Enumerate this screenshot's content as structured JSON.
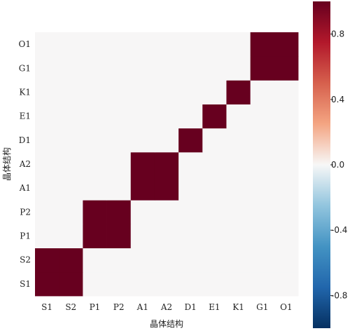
{
  "chart_data": {
    "type": "heatmap",
    "xlabel": "晶体结构",
    "ylabel": "晶体结构",
    "x_categories": [
      "S1",
      "S2",
      "P1",
      "P2",
      "A1",
      "A2",
      "D1",
      "E1",
      "K1",
      "G1",
      "O1"
    ],
    "y_categories": [
      "S1",
      "S2",
      "P1",
      "P2",
      "A1",
      "A2",
      "D1",
      "E1",
      "K1",
      "G1",
      "O1"
    ],
    "values": [
      [
        1,
        1,
        0,
        0,
        0,
        0,
        0,
        0,
        0,
        0,
        0
      ],
      [
        1,
        1,
        0,
        0,
        0,
        0,
        0,
        0,
        0,
        0,
        0
      ],
      [
        0,
        0,
        1,
        1,
        0,
        0,
        0,
        0,
        0,
        0,
        0
      ],
      [
        0,
        0,
        1,
        1,
        0,
        0,
        0,
        0,
        0,
        0,
        0
      ],
      [
        0,
        0,
        0,
        0,
        1,
        1,
        0,
        0,
        0,
        0,
        0
      ],
      [
        0,
        0,
        0,
        0,
        1,
        1,
        0,
        0,
        0,
        0,
        0
      ],
      [
        0,
        0,
        0,
        0,
        0,
        0,
        1,
        0,
        0,
        0,
        0
      ],
      [
        0,
        0,
        0,
        0,
        0,
        0,
        0,
        1,
        0,
        0,
        0
      ],
      [
        0,
        0,
        0,
        0,
        0,
        0,
        0,
        0,
        1,
        0,
        0
      ],
      [
        0,
        0,
        0,
        0,
        0,
        0,
        0,
        0,
        0,
        1,
        1
      ],
      [
        0,
        0,
        0,
        0,
        0,
        0,
        0,
        0,
        0,
        1,
        1
      ]
    ],
    "color_range": [
      -1,
      1
    ],
    "colormap": "RdBu_r",
    "colorbar_ticks": [
      0.8,
      0.4,
      0.0,
      -0.4,
      -0.8
    ],
    "colorbar_tick_labels": [
      "0.8",
      "0.4",
      "0.0",
      "-0.4",
      "-0.8"
    ],
    "grid": false,
    "colors": {
      "high": "#67001f",
      "zero": "#f7f6f6",
      "low": "#053061"
    }
  }
}
